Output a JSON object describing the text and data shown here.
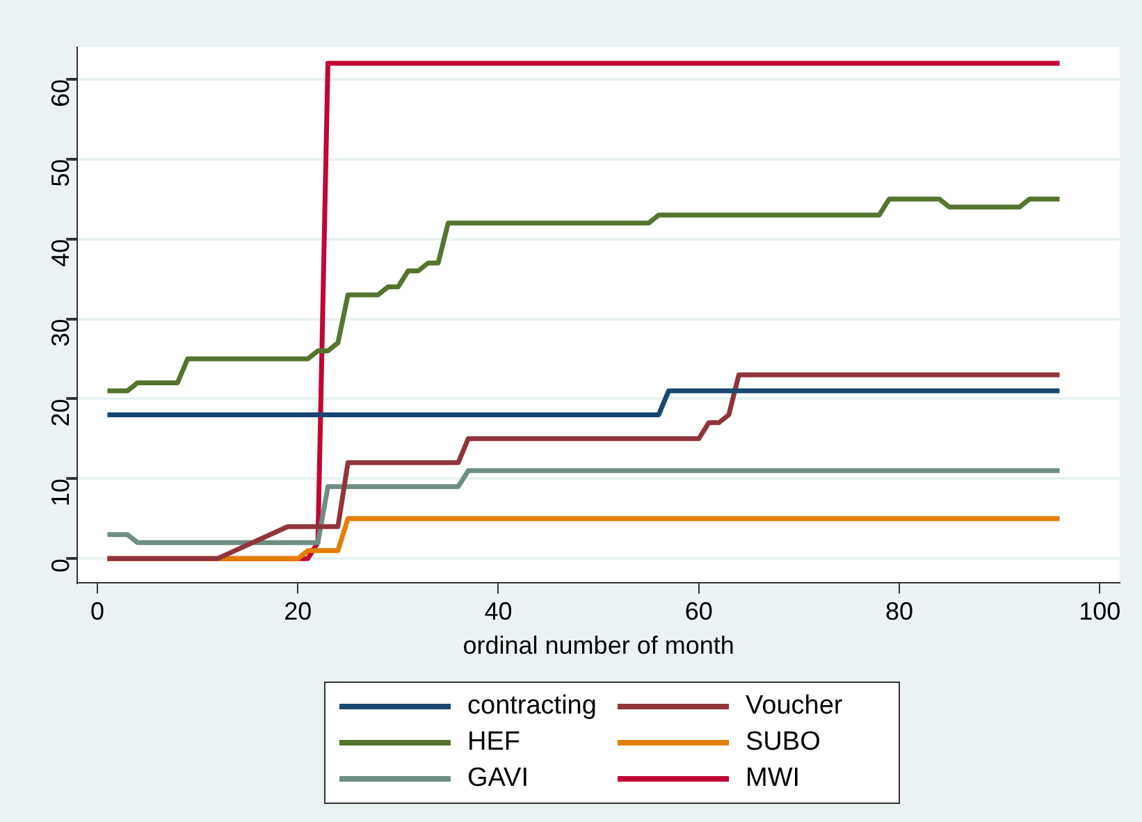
{
  "chart_data": {
    "type": "line",
    "xlabel": "ordinal number of month",
    "xlim": [
      -2,
      102
    ],
    "xticks": [
      0,
      20,
      40,
      60,
      80,
      100
    ],
    "ylim": [
      -3,
      64
    ],
    "yticks": [
      0,
      10,
      20,
      30,
      40,
      50,
      60
    ],
    "grid": "y",
    "legend": "bottom",
    "marker": "none",
    "line_style": "solid",
    "series": [
      {
        "name": "contracting",
        "color": "#1a476f",
        "x": [
          1,
          56,
          57,
          96
        ],
        "values": [
          18,
          18,
          21,
          21
        ]
      },
      {
        "name": "Voucher",
        "color": "#90353b",
        "x": [
          1,
          12,
          19,
          24,
          25,
          36,
          37,
          60,
          61,
          62,
          63,
          64,
          96
        ],
        "values": [
          0,
          0,
          4,
          4,
          12,
          12,
          15,
          15,
          17,
          17,
          18,
          23,
          23
        ]
      },
      {
        "name": "HEF",
        "color": "#55752f",
        "x": [
          1,
          3,
          4,
          8,
          9,
          21,
          22,
          23,
          24,
          25,
          28,
          29,
          30,
          31,
          32,
          33,
          34,
          35,
          55,
          56,
          78,
          79,
          84,
          85,
          92,
          93,
          96
        ],
        "values": [
          21,
          21,
          22,
          22,
          25,
          25,
          26,
          26,
          27,
          33,
          33,
          34,
          34,
          36,
          36,
          37,
          37,
          42,
          42,
          43,
          43,
          45,
          45,
          44,
          44,
          45,
          45
        ]
      },
      {
        "name": "SUBO",
        "color": "#e37e00",
        "x": [
          1,
          20,
          21,
          24,
          25,
          96
        ],
        "values": [
          0,
          0,
          1,
          1,
          5,
          5
        ]
      },
      {
        "name": "GAVI",
        "color": "#6e8e84",
        "x": [
          1,
          3,
          4,
          22,
          23,
          36,
          37,
          96
        ],
        "values": [
          3,
          3,
          2,
          2,
          9,
          9,
          11,
          11
        ]
      },
      {
        "name": "MWI",
        "color": "#c10534",
        "x": [
          1,
          21,
          22,
          23,
          96
        ],
        "values": [
          0,
          0,
          2,
          62,
          62
        ]
      }
    ]
  }
}
